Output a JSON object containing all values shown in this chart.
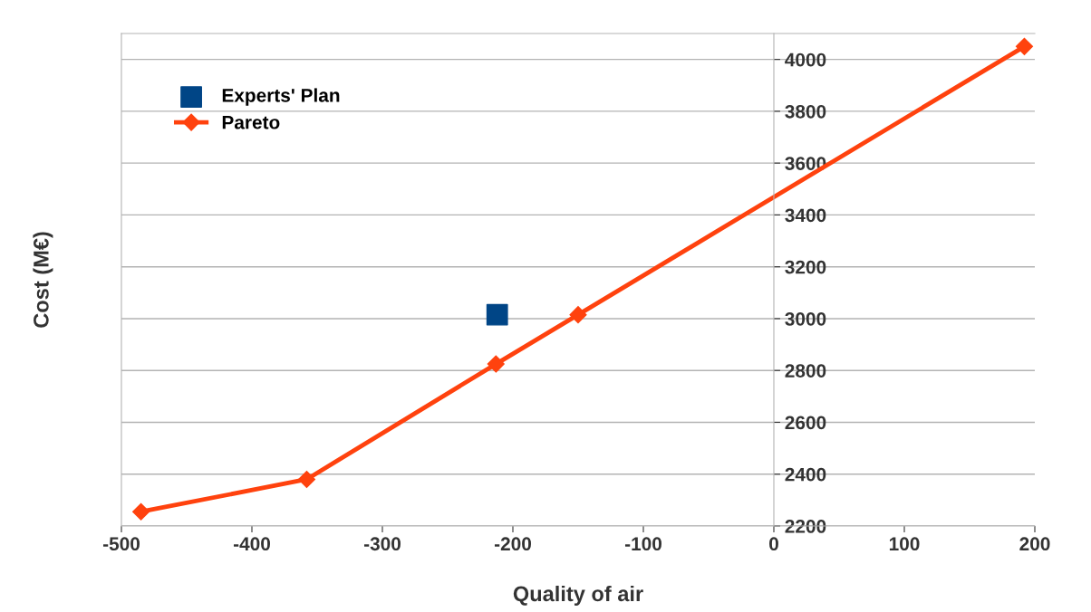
{
  "chart_data": {
    "type": "line",
    "xlabel": "Quality of air",
    "ylabel": "Cost (M€)",
    "xlim": [
      -500,
      200
    ],
    "xticks": [
      -500,
      -400,
      -300,
      -200,
      -100,
      0,
      100,
      200
    ],
    "ylim": [
      2200,
      4100
    ],
    "yticks": [
      2200,
      2400,
      2600,
      2800,
      3000,
      3200,
      3400,
      3600,
      3800,
      4000
    ],
    "grid": "y",
    "legend": "top left",
    "series": [
      {
        "name": "Experts' Plan",
        "type": "scatter",
        "marker": "square",
        "color": "#004586",
        "x": [
          -212
        ],
        "values": [
          3015
        ]
      },
      {
        "name": "Pareto",
        "marker": "diamond",
        "line_style": "solid",
        "color": "#ff420e",
        "x": [
          -485,
          -358,
          -213,
          -150,
          192
        ],
        "values": [
          2255,
          2380,
          2825,
          3015,
          4050
        ]
      }
    ]
  }
}
